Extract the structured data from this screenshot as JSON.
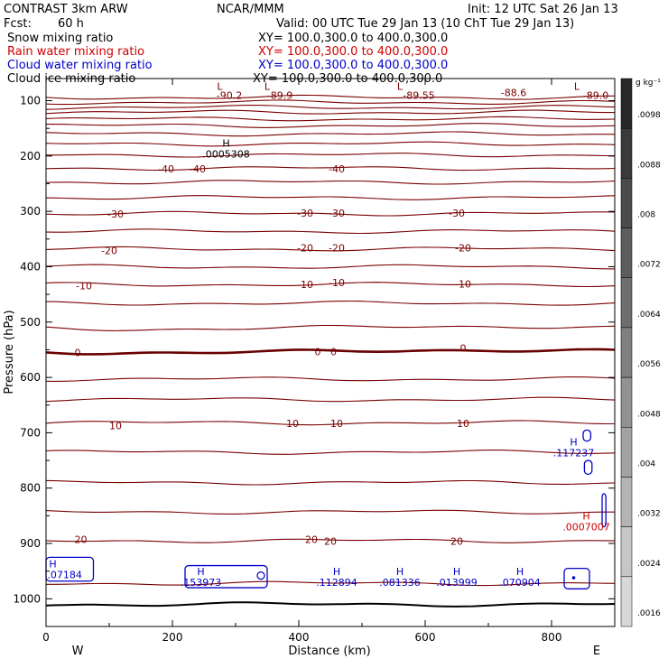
{
  "header": {
    "model": "CONTRAST  3km ARW",
    "center": "NCAR/MMM",
    "init": "Init: 12 UTC Sat 26 Jan 13",
    "fcst_label": "Fcst:",
    "fcst_value": "60 h",
    "valid": "Valid: 00 UTC Tue 29 Jan 13 (10 ChT Tue 29 Jan 13)"
  },
  "fields": [
    {
      "label": "Snow mixing ratio",
      "xy": "XY= 100.0,300.0 to 400.0,300.0",
      "color": "#000000"
    },
    {
      "label": "Rain water mixing ratio",
      "xy": "XY= 100.0,300.0 to 400.0,300.0",
      "color": "#d00000"
    },
    {
      "label": "Cloud water mixing ratio",
      "xy": "XY= 100.0,300.0 to 400.0,300.0",
      "color": "#0000c8"
    },
    {
      "label": "Cloud ice mixing ratio",
      "xy": "XY= 100.0,300.0 to 400.0,300.0",
      "color": "#000000"
    }
  ],
  "chart_data": {
    "type": "cross-section contour",
    "xlabel": "Distance (km)",
    "ylabel": "Pressure (hPa)",
    "xlim": [
      0,
      900
    ],
    "ylim": [
      1050,
      60
    ],
    "x_ticks": [
      "0",
      "200",
      "400",
      "600",
      "800"
    ],
    "x_tick_values": [
      0,
      200,
      400,
      600,
      800
    ],
    "y_ticks": [
      "100",
      "200",
      "300",
      "400",
      "500",
      "600",
      "700",
      "800",
      "900",
      "1000"
    ],
    "y_tick_values": [
      100,
      200,
      300,
      400,
      500,
      600,
      700,
      800,
      900,
      1000
    ],
    "direction_left": "W",
    "direction_right": "E",
    "temperature_contours": [
      {
        "label": "-40",
        "pressure": 222
      },
      {
        "label": "-30",
        "pressure": 304
      },
      {
        "label": "-20",
        "pressure": 368
      },
      {
        "label": "-10",
        "pressure": 432
      },
      {
        "label": "0",
        "pressure": 553
      },
      {
        "label": "10",
        "pressure": 682
      },
      {
        "label": "20",
        "pressure": 895
      }
    ],
    "contour_labels": [
      {
        "text": "-90.2",
        "x": 290,
        "p": 90
      },
      {
        "text": "-89.9",
        "x": 370,
        "p": 90
      },
      {
        "text": "-89.55",
        "x": 590,
        "p": 90
      },
      {
        "text": "-88.6",
        "x": 740,
        "p": 85
      },
      {
        "text": "-89.0",
        "x": 870,
        "p": 90
      },
      {
        "text": "-40",
        "x": 190,
        "p": 223
      },
      {
        "text": "-40",
        "x": 240,
        "p": 223
      },
      {
        "text": "-40",
        "x": 460,
        "p": 223
      },
      {
        "text": "-30",
        "x": 110,
        "p": 305
      },
      {
        "text": "-30",
        "x": 410,
        "p": 303
      },
      {
        "text": "-30",
        "x": 460,
        "p": 303
      },
      {
        "text": "-30",
        "x": 650,
        "p": 303
      },
      {
        "text": "-20",
        "x": 100,
        "p": 371
      },
      {
        "text": "-20",
        "x": 410,
        "p": 366
      },
      {
        "text": "-20",
        "x": 460,
        "p": 366
      },
      {
        "text": "-20",
        "x": 660,
        "p": 366
      },
      {
        "text": "-10",
        "x": 60,
        "p": 434
      },
      {
        "text": "-10",
        "x": 410,
        "p": 432
      },
      {
        "text": "-10",
        "x": 460,
        "p": 429
      },
      {
        "text": "-10",
        "x": 660,
        "p": 431
      },
      {
        "text": "0",
        "x": 50,
        "p": 555
      },
      {
        "text": "0",
        "x": 430,
        "p": 553
      },
      {
        "text": "0",
        "x": 455,
        "p": 553
      },
      {
        "text": "0",
        "x": 660,
        "p": 547
      },
      {
        "text": "10",
        "x": 110,
        "p": 687
      },
      {
        "text": "10",
        "x": 390,
        "p": 683
      },
      {
        "text": "10",
        "x": 460,
        "p": 683
      },
      {
        "text": "10",
        "x": 660,
        "p": 683
      },
      {
        "text": "20",
        "x": 55,
        "p": 893
      },
      {
        "text": "20",
        "x": 420,
        "p": 893
      },
      {
        "text": "20",
        "x": 450,
        "p": 896
      },
      {
        "text": "20",
        "x": 650,
        "p": 896
      }
    ],
    "extrema": [
      {
        "kind": "L",
        "x": 275,
        "p": 80,
        "color": "#7a0000"
      },
      {
        "kind": "L",
        "x": 350,
        "p": 80,
        "color": "#7a0000"
      },
      {
        "kind": "L",
        "x": 560,
        "p": 80,
        "color": "#7a0000"
      },
      {
        "kind": "L",
        "x": 840,
        "p": 80,
        "color": "#7a0000"
      },
      {
        "kind": "H",
        "x": 285,
        "p": 183,
        "color": "#000000",
        "value": ".0005308"
      },
      {
        "kind": "H",
        "x": 835,
        "p": 723,
        "color": "#0000c8",
        "value": ".117237"
      },
      {
        "kind": "H",
        "x": 855,
        "p": 857,
        "color": "#d00000",
        "value": ".0007007"
      },
      {
        "kind": "H",
        "x": 2,
        "p": 943,
        "color": "#0000c8",
        "value": ".07184"
      },
      {
        "kind": "H",
        "x": 245,
        "p": 957,
        "color": "#0000c8",
        "value": ".153973"
      },
      {
        "kind": "H",
        "x": 460,
        "p": 957,
        "color": "#0000c8",
        "value": ".112894"
      },
      {
        "kind": "H",
        "x": 560,
        "p": 957,
        "color": "#0000c8",
        "value": ".081336"
      },
      {
        "kind": "H",
        "x": 650,
        "p": 957,
        "color": "#0000c8",
        "value": ".013999"
      },
      {
        "kind": "H",
        "x": 750,
        "p": 957,
        "color": "#0000c8",
        "value": ".070904"
      }
    ],
    "colorbar": {
      "unit": "g kg⁻¹",
      "labels": [
        ".0098",
        ".0088",
        ".008",
        ".0072",
        ".0064",
        ".0056",
        ".0048",
        ".004",
        ".0032",
        ".0024",
        ".0016"
      ]
    },
    "colors": {
      "temperature": "#7a0000",
      "freezing_level": "#6a0000",
      "cloud_water": "#0000c8",
      "rain_water": "#d00000",
      "ground": "#000000"
    }
  }
}
